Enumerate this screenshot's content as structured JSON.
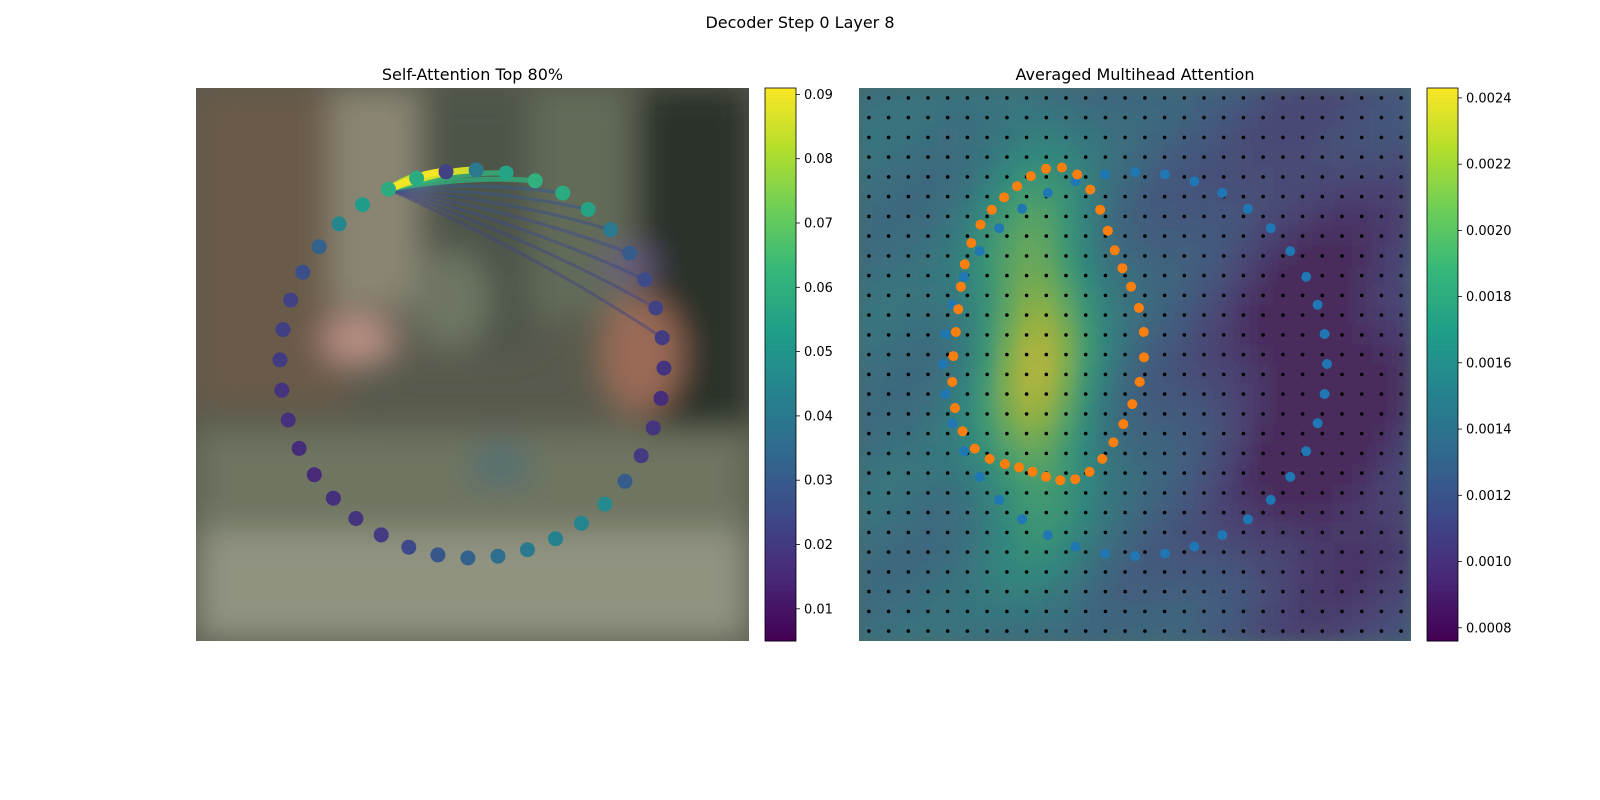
{
  "figure": {
    "suptitle": "Decoder Step 0 Layer 8"
  },
  "colormaps": {
    "viridis": [
      "#440154",
      "#482878",
      "#3e4989",
      "#31688e",
      "#26828e",
      "#1f9e89",
      "#35b779",
      "#6ece58",
      "#b5de2b",
      "#fde725"
    ],
    "magenta_overlay": "#8a1f5a"
  },
  "colors": {
    "node_orange": "#ff7f0e",
    "node_blue": "#1f77b4",
    "grid_dot": "#000000"
  },
  "chart_data": [
    {
      "type": "scatter",
      "subtype": "self-attention graph over image",
      "title": "Self-Attention Top 80%",
      "xlabel": "",
      "ylabel": "",
      "axes_visible": false,
      "colorbar": {
        "vmin": 0.005,
        "vmax": 0.091,
        "ticks": [
          0.01,
          0.02,
          0.03,
          0.04,
          0.05,
          0.06,
          0.07,
          0.08,
          0.09
        ]
      },
      "nodes": {
        "count": 40,
        "contour_shape": "ellipse",
        "values": [
          0.058,
          0.052,
          0.045,
          0.032,
          0.026,
          0.022,
          0.021,
          0.02,
          0.018,
          0.017,
          0.016,
          0.015,
          0.017,
          0.018,
          0.02,
          0.024,
          0.028,
          0.032,
          0.036,
          0.04,
          0.043,
          0.044,
          0.046,
          0.03,
          0.02,
          0.018,
          0.016,
          0.018,
          0.02,
          0.022,
          0.025,
          0.03,
          0.04,
          0.055,
          0.058,
          0.06,
          0.055,
          0.04,
          0.022,
          0.058
        ]
      },
      "source_node": 0,
      "attention_edges": [
        {
          "to": 38,
          "weight": 0.09
        },
        {
          "to": 37,
          "weight": 0.086
        },
        {
          "to": 36,
          "weight": 0.062
        },
        {
          "to": 35,
          "weight": 0.06
        },
        {
          "to": 39,
          "weight": 0.08
        },
        {
          "to": 34,
          "weight": 0.03
        },
        {
          "to": 33,
          "weight": 0.028
        },
        {
          "to": 32,
          "weight": 0.026
        },
        {
          "to": 31,
          "weight": 0.025
        },
        {
          "to": 30,
          "weight": 0.024
        },
        {
          "to": 29,
          "weight": 0.023
        },
        {
          "to": 28,
          "weight": 0.022
        }
      ]
    },
    {
      "type": "heatmap",
      "subtype": "attention heatmap over image with point overlays",
      "title": "Averaged Multihead Attention",
      "xlabel": "",
      "ylabel": "",
      "axes_visible": false,
      "colorbar": {
        "vmin": 0.00076,
        "vmax": 0.00243,
        "ticks": [
          0.0008,
          0.001,
          0.0012,
          0.0014,
          0.0016,
          0.0018,
          0.002,
          0.0022,
          0.0024
        ]
      },
      "grid": {
        "rows": 28,
        "cols": 28
      },
      "hotspot": "tall column left of center, peaking around 0.0024",
      "coldspot": "right side, around 0.0008",
      "series": [
        {
          "color": "orange",
          "points": 40,
          "shape": "irregular closed contour"
        },
        {
          "color": "blue",
          "points": 40,
          "shape": "larger ellipse contour"
        }
      ]
    }
  ]
}
